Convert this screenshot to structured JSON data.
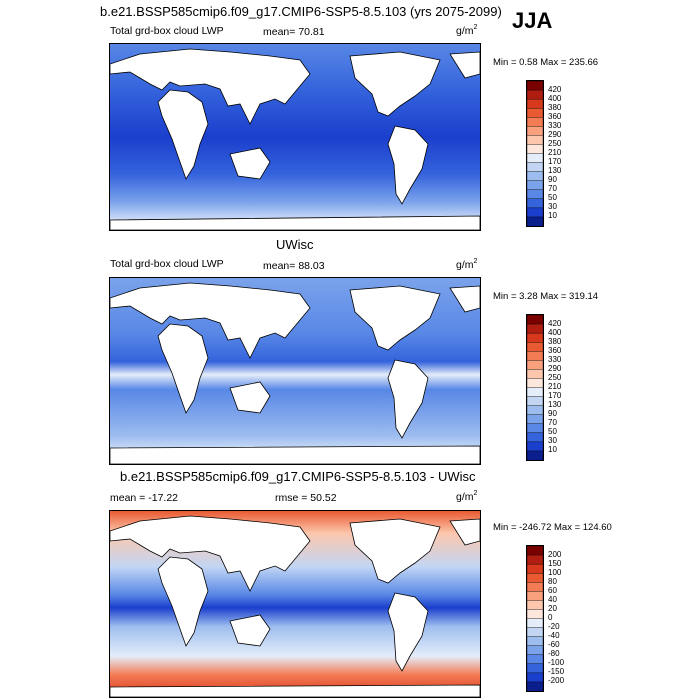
{
  "season": "JJA",
  "panels": [
    {
      "title": "b.e21.BSSP585cmip6.f09_g17.CMIP6-SSP5-8.5.103 (yrs 2075-2099)",
      "left_label": "Total grd-box cloud LWP",
      "mean_label": "mean=  70.81",
      "units": "g/m",
      "units_sup": "2",
      "minmax": "Min =   0.58 Max = 235.66",
      "colorbar": {
        "labels": [
          "420",
          "400",
          "380",
          "360",
          "330",
          "290",
          "250",
          "210",
          "170",
          "130",
          "90",
          "70",
          "50",
          "30",
          "10"
        ],
        "colors": [
          "#7a0000",
          "#b01e12",
          "#d8381c",
          "#ea5a32",
          "#f47c55",
          "#f9a07d",
          "#fcc7ad",
          "#fde6dc",
          "#e4edf9",
          "#c2d6f4",
          "#9dbdef",
          "#7ba3eb",
          "#5887e6",
          "#3463dc",
          "#1b3fcd",
          "#0a1e8c"
        ]
      }
    },
    {
      "title": "UWisc",
      "left_label": "Total grd-box cloud LWP",
      "mean_label": "mean=  88.03",
      "units": "g/m",
      "units_sup": "2",
      "minmax": "Min =   3.28 Max = 319.14",
      "colorbar": {
        "labels": [
          "420",
          "400",
          "380",
          "360",
          "330",
          "290",
          "250",
          "210",
          "170",
          "130",
          "90",
          "70",
          "50",
          "30",
          "10"
        ],
        "colors": [
          "#7a0000",
          "#b01e12",
          "#d8381c",
          "#ea5a32",
          "#f47c55",
          "#f9a07d",
          "#fcc7ad",
          "#fde6dc",
          "#e4edf9",
          "#c2d6f4",
          "#9dbdef",
          "#7ba3eb",
          "#5887e6",
          "#3463dc",
          "#1b3fcd",
          "#0a1e8c"
        ]
      }
    },
    {
      "title": "b.e21.BSSP585cmip6.f09_g17.CMIP6-SSP5-8.5.103 - UWisc",
      "left_label": "mean = -17.22",
      "mean_label": "rmse =  50.52",
      "units": "g/m",
      "units_sup": "2",
      "minmax": "Min = -246.72 Max = 124.60",
      "colorbar": {
        "labels": [
          "200",
          "150",
          "100",
          "80",
          "60",
          "40",
          "20",
          "0",
          "-20",
          "-40",
          "-60",
          "-80",
          "-100",
          "-150",
          "-200"
        ],
        "colors": [
          "#7a0000",
          "#b01e12",
          "#d8381c",
          "#ea5a32",
          "#f47c55",
          "#f9a07d",
          "#fcc7ad",
          "#fde6dc",
          "#e4edf9",
          "#c2d6f4",
          "#9dbdef",
          "#7ba3eb",
          "#5887e6",
          "#3463dc",
          "#1b3fcd",
          "#0a1e8c"
        ]
      }
    }
  ],
  "colors": {
    "land": "#ffffff",
    "coast": "#000000",
    "ocean_deep": "#1b3fcd",
    "ocean_mid": "#5887e6",
    "ocean_light": "#c2d6f4",
    "diff_pos": "#d8381c",
    "diff_neg": "#3463dc"
  }
}
